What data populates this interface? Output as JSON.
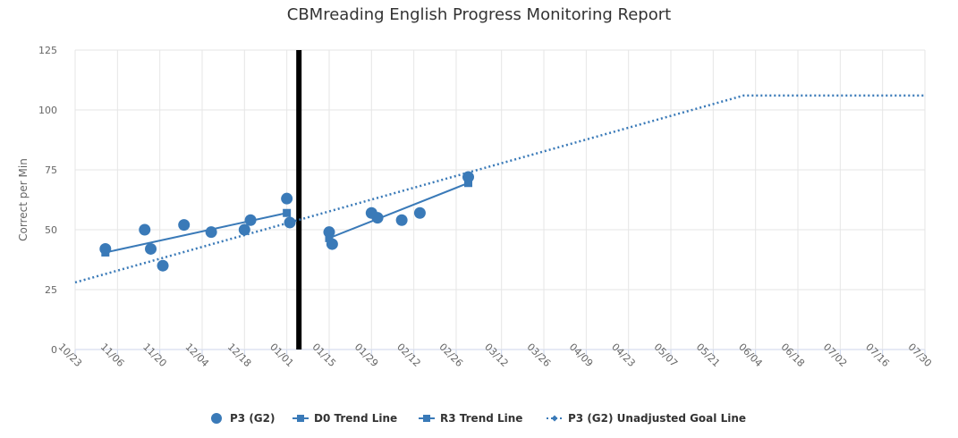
{
  "chart_data": {
    "type": "line",
    "title": "CBMreading English Progress Monitoring Report",
    "ylabel": "Correct per Min",
    "xlabel": "",
    "ylim": [
      0,
      125
    ],
    "yticks": [
      0,
      25,
      50,
      75,
      100,
      125
    ],
    "x_ticks": [
      "10/23",
      "11/06",
      "11/20",
      "12/04",
      "12/18",
      "01/01",
      "01/15",
      "01/29",
      "02/12",
      "02/26",
      "03/12",
      "03/26",
      "04/09",
      "04/23",
      "05/07",
      "05/21",
      "06/04",
      "06/18",
      "07/02",
      "07/16",
      "07/30"
    ],
    "x_range": [
      "10/23",
      "07/30"
    ],
    "grid": true,
    "legend_position": "bottom",
    "phase_change_date": "01/05",
    "series": [
      {
        "name": "P3 (G2)",
        "marker": "circle",
        "color": "#3a7ab8",
        "points": [
          {
            "x": "11/02",
            "y": 42
          },
          {
            "x": "11/15",
            "y": 50
          },
          {
            "x": "11/17",
            "y": 42
          },
          {
            "x": "11/21",
            "y": 35
          },
          {
            "x": "11/28",
            "y": 52
          },
          {
            "x": "12/07",
            "y": 49
          },
          {
            "x": "12/18",
            "y": 50
          },
          {
            "x": "12/20",
            "y": 54
          },
          {
            "x": "01/01",
            "y": 63
          },
          {
            "x": "01/02",
            "y": 53
          },
          {
            "x": "01/15",
            "y": 49
          },
          {
            "x": "01/16",
            "y": 44
          },
          {
            "x": "01/29",
            "y": 57
          },
          {
            "x": "01/31",
            "y": 55
          },
          {
            "x": "02/08",
            "y": 54
          },
          {
            "x": "02/14",
            "y": 57
          },
          {
            "x": "03/01",
            "y": 72
          }
        ]
      },
      {
        "name": "D0 Trend Line",
        "marker": "square",
        "color": "#3a7ab8",
        "points": [
          {
            "x": "11/02",
            "y": 40.5
          },
          {
            "x": "01/01",
            "y": 57
          }
        ]
      },
      {
        "name": "R3 Trend Line",
        "marker": "square",
        "color": "#3a7ab8",
        "points": [
          {
            "x": "01/15",
            "y": 46.5
          },
          {
            "x": "03/01",
            "y": 69.5
          }
        ]
      },
      {
        "name": "P3 (G2) Unadjusted Goal Line",
        "marker": "diamond",
        "line": "dotted",
        "color": "#3a7ab8",
        "points": [
          {
            "x": "10/23",
            "y": 28
          },
          {
            "x": "05/31",
            "y": 106
          },
          {
            "x": "07/30",
            "y": 106
          }
        ]
      }
    ]
  }
}
